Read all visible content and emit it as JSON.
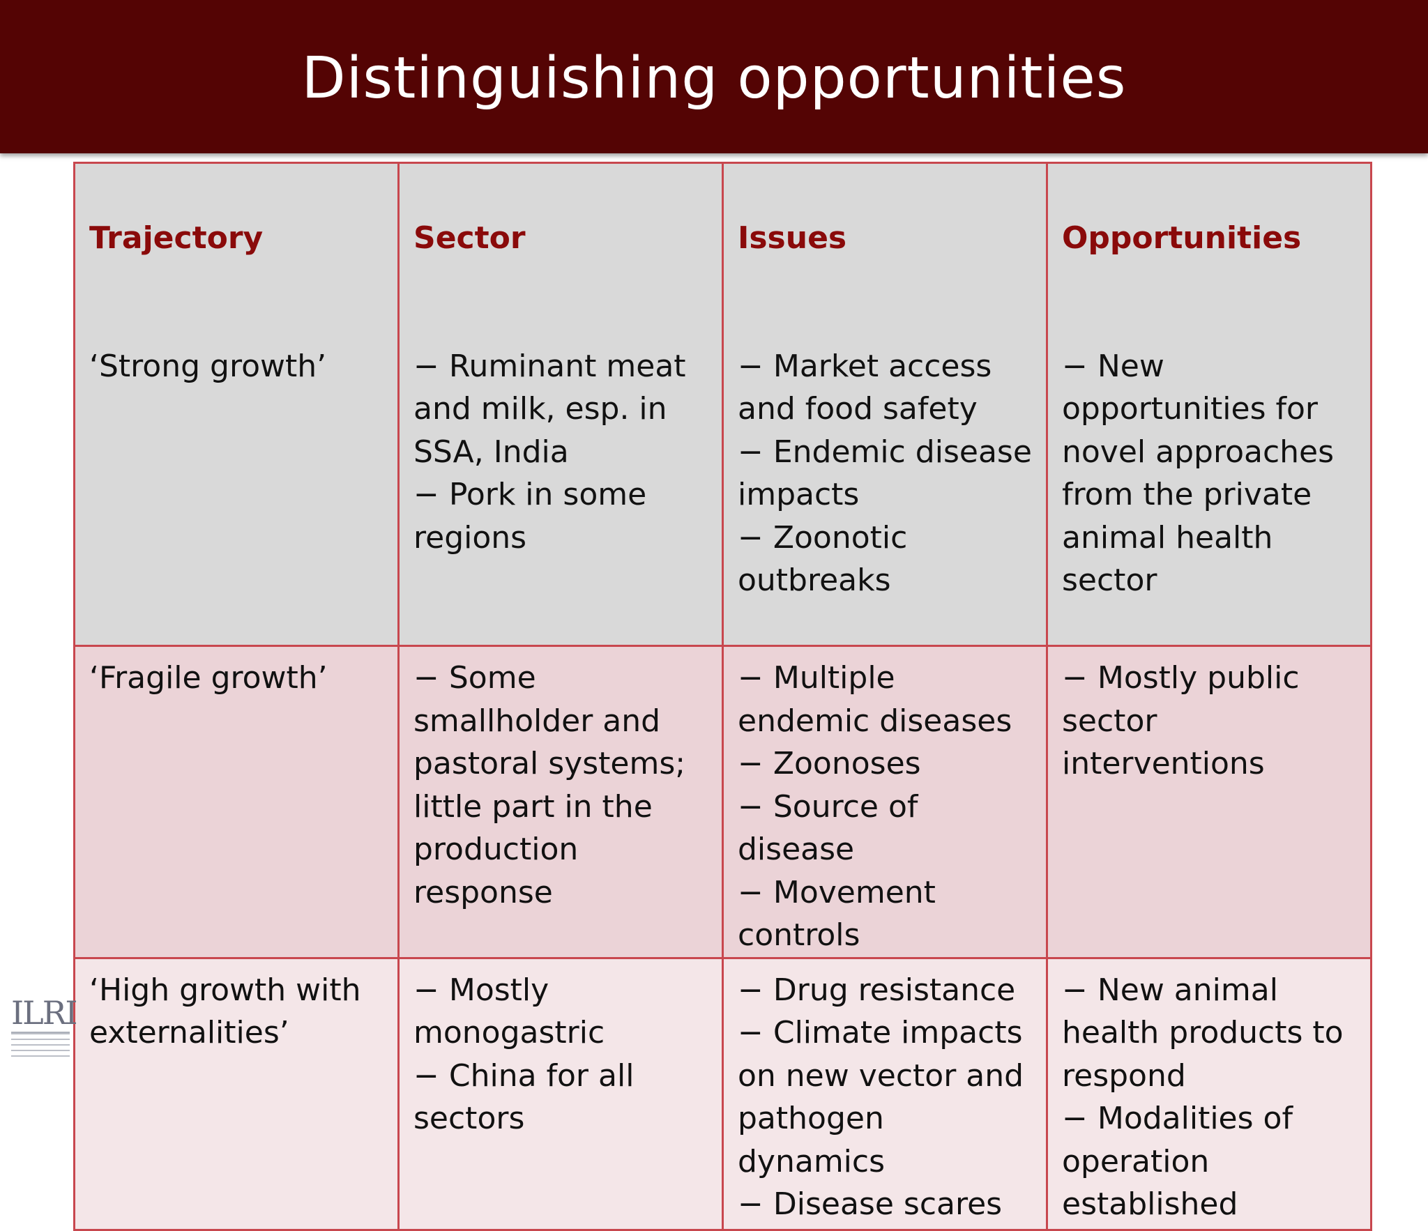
{
  "slide": {
    "title": "Distinguishing opportunities"
  },
  "table": {
    "headers": [
      "Trajectory",
      "Sector",
      "Issues",
      "Opportunities"
    ],
    "rows": [
      [
        "‘Strong growth’",
        "− Ruminant meat and milk, esp. in SSA, India\n− Pork in some regions",
        "− Market access and food safety\n− Endemic disease impacts\n− Zoonotic outbreaks",
        "− New opportunities for novel approaches from the private animal health sector"
      ],
      [
        "‘Fragile growth’",
        "− Some smallholder and pastoral systems; little part in the production response",
        "− Multiple endemic diseases\n− Zoonoses\n− Source of disease\n− Movement controls",
        "− Mostly public sector interventions"
      ],
      [
        "‘High growth with externalities’",
        "− Mostly monogastric\n− China for all sectors",
        "− Drug resistance\n− Climate impacts on new vector and pathogen dynamics\n− Disease scares",
        "− New animal health products to respond\n− Modalities of operation established"
      ]
    ]
  },
  "logo": {
    "text": "ILRI",
    "subtitle": "INTERNATIONAL LIVESTOCK RESEARCH INSTITUTE"
  },
  "colors": {
    "title_bar": "#540404",
    "header_text": "#8a0a0a",
    "border": "#c8474e",
    "row_strong": "#d9d9d9",
    "row_fragile": "#ebd3d7",
    "row_high": "#f4e6e8"
  }
}
